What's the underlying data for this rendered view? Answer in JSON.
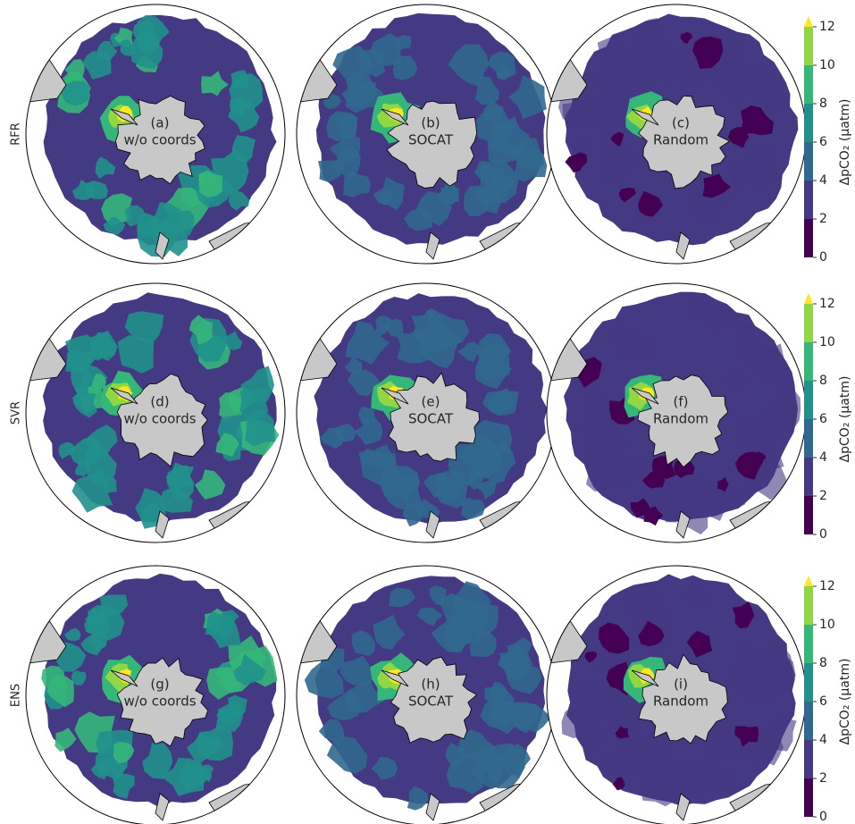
{
  "figure": {
    "rows": [
      {
        "label": "RFR",
        "panels": [
          {
            "label": "(a)",
            "subtitle": "w/o coords"
          },
          {
            "label": "(b)",
            "subtitle": "SOCAT"
          },
          {
            "label": "(c)",
            "subtitle": "Random"
          }
        ]
      },
      {
        "label": "SVR",
        "panels": [
          {
            "label": "(d)",
            "subtitle": "w/o coords"
          },
          {
            "label": "(e)",
            "subtitle": "SOCAT"
          },
          {
            "label": "(f)",
            "subtitle": "Random"
          }
        ]
      },
      {
        "label": "ENS",
        "panels": [
          {
            "label": "(g)",
            "subtitle": "w/o coords"
          },
          {
            "label": "(h)",
            "subtitle": "SOCAT"
          },
          {
            "label": "(i)",
            "subtitle": "Random"
          }
        ]
      }
    ],
    "colorbar": {
      "label": "ΔpCO₂ (μatm)",
      "clim": [
        0,
        12
      ],
      "ticks": [
        0,
        2,
        4,
        6,
        8,
        10,
        12
      ],
      "colors": [
        "#440154",
        "#443983",
        "#31688e",
        "#21918c",
        "#35b779",
        "#90d743"
      ],
      "extend_color": "#fde725"
    }
  }
}
